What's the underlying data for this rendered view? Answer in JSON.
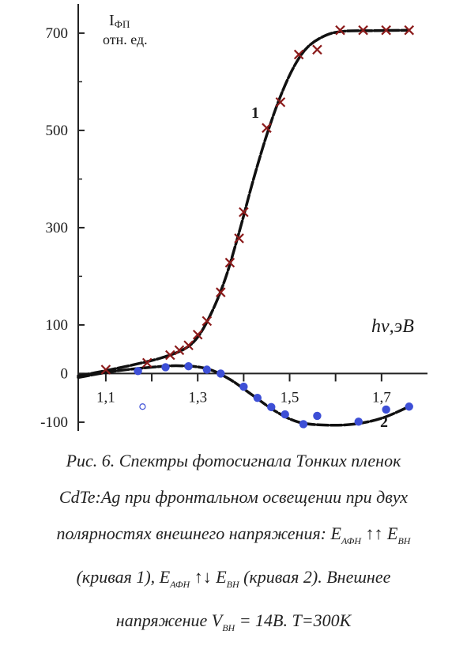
{
  "chart_data": {
    "type": "line",
    "ylabel_line1": "I",
    "ylabel_sub": "ФП",
    "ylabel_line2": "отн. ед.",
    "xlabel_main": "hν",
    "xlabel_unit": ",эВ",
    "xlim": [
      1.04,
      1.8
    ],
    "ylim": [
      -118,
      760
    ],
    "xticks": [
      1.1,
      1.3,
      1.5,
      1.7
    ],
    "xtick_labels": [
      "1,1",
      "1,3",
      "1,5",
      "1,7"
    ],
    "yticks": [
      -100,
      0,
      100,
      300,
      500,
      700
    ],
    "ytick_labels": [
      "-100",
      "0",
      "100",
      "300",
      "500",
      "700"
    ],
    "grid": false,
    "series": [
      {
        "name": "1",
        "marker": "x",
        "color": "#8b1a1a",
        "points": [
          [
            1.1,
            8
          ],
          [
            1.19,
            22
          ],
          [
            1.24,
            38
          ],
          [
            1.26,
            48
          ],
          [
            1.28,
            58
          ],
          [
            1.3,
            80
          ],
          [
            1.32,
            108
          ],
          [
            1.35,
            167
          ],
          [
            1.37,
            228
          ],
          [
            1.39,
            278
          ],
          [
            1.4,
            332
          ],
          [
            1.45,
            505
          ],
          [
            1.48,
            558
          ],
          [
            1.52,
            656
          ],
          [
            1.56,
            666
          ],
          [
            1.61,
            706
          ],
          [
            1.66,
            706
          ],
          [
            1.71,
            706
          ],
          [
            1.76,
            706
          ]
        ],
        "curve": [
          [
            1.04,
            -5
          ],
          [
            1.1,
            6
          ],
          [
            1.16,
            18
          ],
          [
            1.22,
            32
          ],
          [
            1.27,
            50
          ],
          [
            1.3,
            75
          ],
          [
            1.33,
            125
          ],
          [
            1.36,
            195
          ],
          [
            1.39,
            290
          ],
          [
            1.42,
            395
          ],
          [
            1.45,
            490
          ],
          [
            1.48,
            570
          ],
          [
            1.51,
            632
          ],
          [
            1.54,
            672
          ],
          [
            1.58,
            696
          ],
          [
            1.62,
            704
          ],
          [
            1.68,
            705
          ],
          [
            1.76,
            706
          ]
        ]
      },
      {
        "name": "2",
        "marker": "circle",
        "color": "#3d4fd6",
        "points": [
          [
            1.17,
            5
          ],
          [
            1.23,
            13
          ],
          [
            1.28,
            15
          ],
          [
            1.32,
            8
          ],
          [
            1.35,
            0
          ],
          [
            1.4,
            -27
          ],
          [
            1.43,
            -50
          ],
          [
            1.46,
            -69
          ],
          [
            1.49,
            -84
          ],
          [
            1.53,
            -104
          ],
          [
            1.56,
            -87
          ],
          [
            1.65,
            -99
          ],
          [
            1.71,
            -74
          ],
          [
            1.76,
            -68
          ]
        ],
        "open_points": [
          [
            1.18,
            -68
          ]
        ],
        "curve": [
          [
            1.04,
            -8
          ],
          [
            1.12,
            5
          ],
          [
            1.2,
            13
          ],
          [
            1.26,
            16
          ],
          [
            1.32,
            10
          ],
          [
            1.37,
            -12
          ],
          [
            1.42,
            -45
          ],
          [
            1.47,
            -78
          ],
          [
            1.52,
            -100
          ],
          [
            1.58,
            -106
          ],
          [
            1.64,
            -104
          ],
          [
            1.7,
            -92
          ],
          [
            1.76,
            -68
          ]
        ]
      }
    ]
  },
  "caption": {
    "line1": "Рис. 6. Спектры фотосигнала Тонких пленок",
    "line2": "CdTe:Ag при фронтальном освещении при двух",
    "line3_prefix": "полярностях внешнего напряжения:",
    "e_afh": "E",
    "e_afh_sub": "АФН",
    "up_arrows": "↑↑",
    "e_vh": "E",
    "e_vh_sub": "ВН",
    "line4_prefix": "(кривая 1),",
    "updown_arrows": "↑↓",
    "line4_suffix": "(кривая 2). Внешнее",
    "line5_prefix": "напряжение",
    "v_vh": "V",
    "v_vh_sub": "ВН",
    "v_value": "= 14В",
    "line5_suffix": ". Т=300К"
  }
}
